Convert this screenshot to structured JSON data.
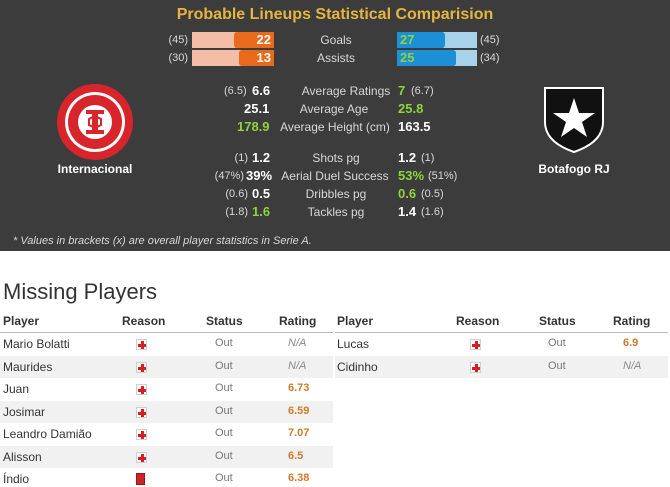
{
  "comparison": {
    "title": "Probable Lineups Statistical Comparision",
    "home_team": "Internacional",
    "away_team": "Botafogo RJ",
    "goals": {
      "label": "Goals",
      "home": "22",
      "home_overall": "(45)",
      "away": "27",
      "away_overall": "(45)",
      "home_fill": 0.49,
      "away_fill": 0.6
    },
    "assists": {
      "label": "Assists",
      "home": "13",
      "home_overall": "(30)",
      "away": "25",
      "away_overall": "(34)",
      "home_fill": 0.43,
      "away_fill": 0.74
    },
    "ratings": {
      "label": "Average Ratings",
      "home": "6.6",
      "home_overall": "(6.5)",
      "away": "7",
      "away_overall": "(6.7)"
    },
    "age": {
      "label": "Average Age",
      "home": "25.1",
      "away": "25.8"
    },
    "height": {
      "label": "Average Height (cm)",
      "home": "178.9",
      "away": "163.5"
    },
    "shots": {
      "label": "Shots pg",
      "home": "1.2",
      "home_overall": "(1)",
      "away": "1.2",
      "away_overall": "(1)"
    },
    "aerial": {
      "label": "Aerial Duel Success",
      "home": "39%",
      "home_overall": "(47%)",
      "away": "53%",
      "away_overall": "(51%)"
    },
    "dribbles": {
      "label": "Dribbles pg",
      "home": "0.5",
      "home_overall": "(0.6)",
      "away": "0.6",
      "away_overall": "(0.5)"
    },
    "tackles": {
      "label": "Tackles pg",
      "home": "1.6",
      "home_overall": "(1.8)",
      "away": "1.4",
      "away_overall": "(1.6)"
    },
    "footnote": "* Values in brackets (x) are overall player statistics in Serie A.",
    "colors": {
      "home": "#e86a1a",
      "away": "#1c8fd6",
      "title": "#e7b53f",
      "better": "#8fd43a"
    }
  },
  "missing": {
    "title": "Missing Players",
    "headers": {
      "player": "Player",
      "reason": "Reason",
      "status": "Status",
      "rating": "Rating"
    },
    "home": [
      {
        "player": "Mario Bolatti",
        "reason": "injury-icon",
        "status": "Out",
        "rating": "N/A"
      },
      {
        "player": "Maurides",
        "reason": "injury-icon",
        "status": "Out",
        "rating": "N/A"
      },
      {
        "player": "Juan",
        "reason": "injury-icon",
        "status": "Out",
        "rating": "6.73"
      },
      {
        "player": "Josimar",
        "reason": "injury-icon",
        "status": "Out",
        "rating": "6.59"
      },
      {
        "player": "Leandro Damião",
        "reason": "injury-icon",
        "status": "Out",
        "rating": "7.07"
      },
      {
        "player": "Alisson",
        "reason": "injury-icon",
        "status": "Out",
        "rating": "6.5"
      },
      {
        "player": "Índio",
        "reason": "red-card-icon",
        "status": "Out",
        "rating": "6.38"
      }
    ],
    "away": [
      {
        "player": "Lucas",
        "reason": "injury-icon",
        "status": "Out",
        "rating": "6.9"
      },
      {
        "player": "Cidinho",
        "reason": "injury-icon",
        "status": "Out",
        "rating": "N/A"
      }
    ]
  }
}
